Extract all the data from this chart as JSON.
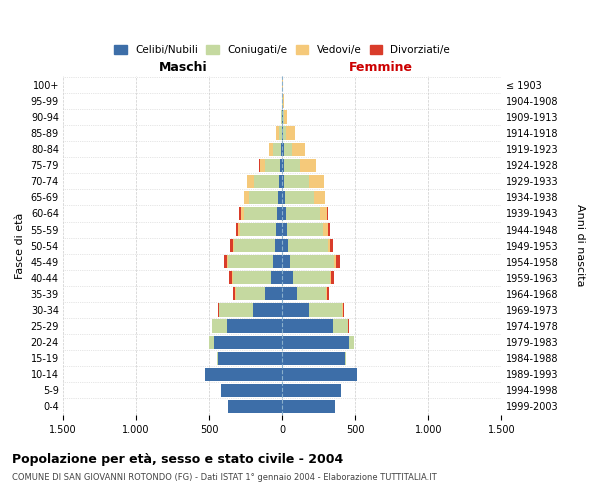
{
  "age_groups": [
    "0-4",
    "5-9",
    "10-14",
    "15-19",
    "20-24",
    "25-29",
    "30-34",
    "35-39",
    "40-44",
    "45-49",
    "50-54",
    "55-59",
    "60-64",
    "65-69",
    "70-74",
    "75-79",
    "80-84",
    "85-89",
    "90-94",
    "95-99",
    "100+"
  ],
  "birth_years": [
    "1999-2003",
    "1994-1998",
    "1989-1993",
    "1984-1988",
    "1979-1983",
    "1974-1978",
    "1969-1973",
    "1964-1968",
    "1959-1963",
    "1954-1958",
    "1949-1953",
    "1944-1948",
    "1939-1943",
    "1934-1938",
    "1929-1933",
    "1924-1928",
    "1919-1923",
    "1914-1918",
    "1909-1913",
    "1904-1908",
    "≤ 1903"
  ],
  "maschi": {
    "celibi": [
      370,
      420,
      530,
      440,
      470,
      380,
      200,
      120,
      80,
      60,
      50,
      40,
      35,
      30,
      20,
      15,
      10,
      5,
      2,
      0,
      0
    ],
    "coniugati": [
      0,
      0,
      2,
      5,
      30,
      100,
      230,
      200,
      260,
      310,
      280,
      250,
      230,
      200,
      170,
      100,
      50,
      20,
      5,
      2,
      0
    ],
    "vedovi": [
      0,
      0,
      0,
      0,
      0,
      1,
      2,
      3,
      5,
      8,
      10,
      15,
      20,
      30,
      50,
      40,
      30,
      15,
      5,
      2,
      0
    ],
    "divorziati": [
      0,
      0,
      0,
      0,
      2,
      3,
      8,
      12,
      18,
      20,
      18,
      12,
      8,
      5,
      3,
      2,
      0,
      0,
      0,
      0,
      0
    ]
  },
  "femmine": {
    "nubili": [
      360,
      400,
      510,
      430,
      460,
      350,
      180,
      100,
      75,
      55,
      40,
      30,
      25,
      20,
      15,
      10,
      10,
      5,
      2,
      0,
      0
    ],
    "coniugate": [
      0,
      0,
      2,
      5,
      30,
      100,
      230,
      200,
      250,
      300,
      270,
      250,
      230,
      200,
      170,
      110,
      55,
      20,
      8,
      2,
      0
    ],
    "vedove": [
      0,
      0,
      0,
      0,
      1,
      2,
      3,
      5,
      10,
      15,
      20,
      30,
      50,
      70,
      100,
      110,
      90,
      60,
      25,
      10,
      2
    ],
    "divorziate": [
      0,
      0,
      0,
      0,
      2,
      3,
      8,
      12,
      18,
      22,
      20,
      15,
      10,
      5,
      3,
      2,
      0,
      0,
      0,
      0,
      0
    ]
  },
  "colors": {
    "celibi": "#3d6ea8",
    "coniugati": "#c5d9a0",
    "vedovi": "#f5c97a",
    "divorziati": "#d93c2a"
  },
  "xlim": 1500,
  "xticks": [
    -1500,
    -1000,
    -500,
    0,
    500,
    1000,
    1500
  ],
  "xtick_labels": [
    "1.500",
    "1.000",
    "500",
    "0",
    "500",
    "1.000",
    "1.500"
  ],
  "title": "Popolazione per età, sesso e stato civile - 2004",
  "subtitle": "COMUNE DI SAN GIOVANNI ROTONDO (FG) - Dati ISTAT 1° gennaio 2004 - Elaborazione TUTTITALIA.IT",
  "ylabel": "Fasce di età",
  "ylabel_right": "Anni di nascita",
  "maschi_label": "Maschi",
  "femmine_label": "Femmine",
  "legend_labels": [
    "Celibi/Nubili",
    "Coniugati/e",
    "Vedovi/e",
    "Divorziati/e"
  ],
  "bg_color": "#ffffff",
  "grid_color": "#cccccc"
}
